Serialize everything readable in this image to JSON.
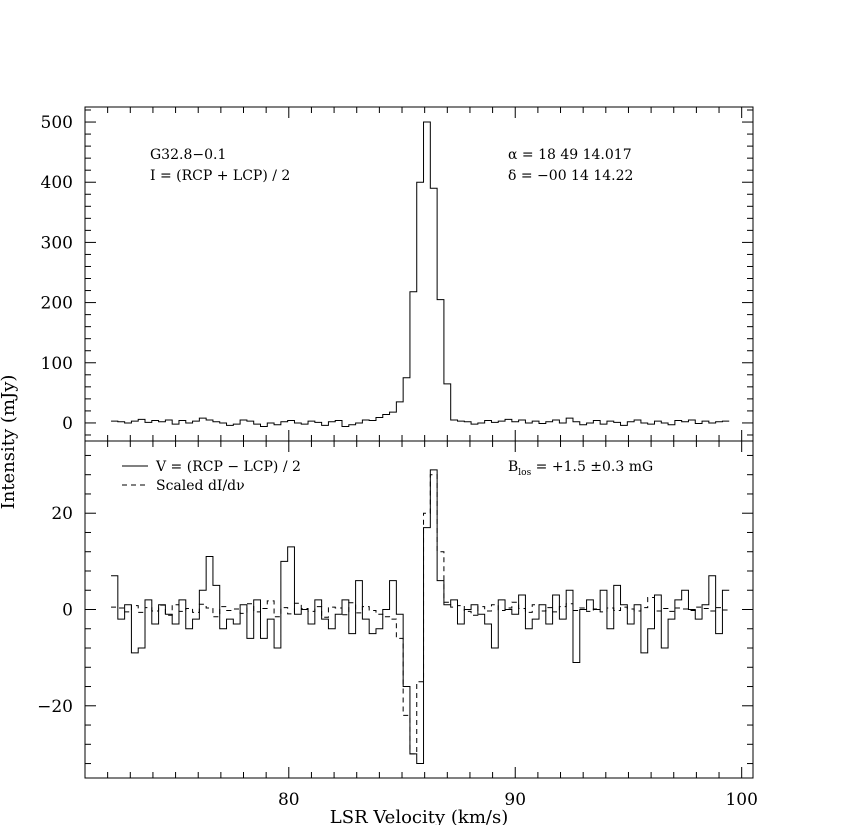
{
  "chart_data": {
    "type": "line",
    "xlabel": "LSR Velocity (km/s)",
    "ylabel": "Intensity (mJy)",
    "xlim": [
      71,
      100.5
    ],
    "xticks": [
      80,
      90,
      100
    ],
    "panels": [
      {
        "id": "top",
        "ylim": [
          -30,
          525
        ],
        "yticks": [
          0,
          100,
          200,
          300,
          400,
          500
        ],
        "annotations": {
          "source": "G32.8−0.1",
          "equation": "I = (RCP + LCP) / 2",
          "ra": "α = 18 49 14.017",
          "dec": "δ = −00 14 14.22"
        },
        "series": [
          {
            "name": "I = (RCP + LCP) / 2",
            "style": "solid",
            "x": [
              72.3,
              72.6,
              72.9,
              73.2,
              73.5,
              73.8,
              74.1,
              74.4,
              74.7,
              75.0,
              75.3,
              75.6,
              75.9,
              76.2,
              76.5,
              76.8,
              77.1,
              77.4,
              77.7,
              78.0,
              78.3,
              78.6,
              78.9,
              79.2,
              79.5,
              79.8,
              80.1,
              80.4,
              80.7,
              81.0,
              81.3,
              81.6,
              81.9,
              82.2,
              82.5,
              82.8,
              83.1,
              83.4,
              83.7,
              84.0,
              84.3,
              84.6,
              84.9,
              85.2,
              85.5,
              85.8,
              86.1,
              86.4,
              86.7,
              87.0,
              87.3,
              87.6,
              87.9,
              88.2,
              88.5,
              88.8,
              89.1,
              89.4,
              89.7,
              90.0,
              90.3,
              90.6,
              90.9,
              91.2,
              91.5,
              91.8,
              92.1,
              92.4,
              92.7,
              93.0,
              93.3,
              93.6,
              93.9,
              94.2,
              94.5,
              94.8,
              95.1,
              95.4,
              95.7,
              96.0,
              96.3,
              96.6,
              96.9,
              97.2,
              97.5,
              97.8,
              98.1,
              98.4,
              98.7,
              99.0,
              99.3
            ],
            "values": [
              3,
              2,
              0,
              3,
              6,
              1,
              4,
              2,
              5,
              -2,
              4,
              0,
              3,
              8,
              5,
              2,
              0,
              -4,
              -2,
              5,
              3,
              -2,
              -6,
              0,
              -3,
              2,
              4,
              0,
              -2,
              3,
              1,
              -4,
              2,
              4,
              -6,
              -3,
              0,
              5,
              4,
              9,
              14,
              18,
              35,
              75,
              218,
              400,
              500,
              390,
              205,
              65,
              5,
              3,
              2,
              -2,
              0,
              4,
              1,
              3,
              6,
              2,
              5,
              0,
              3,
              -1,
              2,
              5,
              0,
              8,
              2,
              -3,
              0,
              4,
              -2,
              3,
              1,
              -4,
              2,
              5,
              0,
              -2,
              3,
              0,
              -3,
              4,
              2,
              5,
              -1,
              3,
              0,
              2,
              3
            ]
          }
        ]
      },
      {
        "id": "bottom",
        "ylim": [
          -35,
          35
        ],
        "yticks": [
          -20,
          0,
          20
        ],
        "annotations": {
          "legend_solid": "V = (RCP − LCP) / 2",
          "legend_dashed": "Scaled dI/dν",
          "field_label": "B",
          "field_sub": "los",
          "field_value": " = +1.5 ±0.3 mG"
        },
        "series": [
          {
            "name": "V = (RCP − LCP) / 2",
            "style": "solid",
            "x": [
              72.3,
              72.6,
              72.9,
              73.2,
              73.5,
              73.8,
              74.1,
              74.4,
              74.7,
              75.0,
              75.3,
              75.6,
              75.9,
              76.2,
              76.5,
              76.8,
              77.1,
              77.4,
              77.7,
              78.0,
              78.3,
              78.6,
              78.9,
              79.2,
              79.5,
              79.8,
              80.1,
              80.4,
              80.7,
              81.0,
              81.3,
              81.6,
              81.9,
              82.2,
              82.5,
              82.8,
              83.1,
              83.4,
              83.7,
              84.0,
              84.3,
              84.6,
              84.9,
              85.2,
              85.5,
              85.8,
              86.1,
              86.4,
              86.7,
              87.0,
              87.3,
              87.6,
              87.9,
              88.2,
              88.5,
              88.8,
              89.1,
              89.4,
              89.7,
              90.0,
              90.3,
              90.6,
              90.9,
              91.2,
              91.5,
              91.8,
              92.1,
              92.4,
              92.7,
              93.0,
              93.3,
              93.6,
              93.9,
              94.2,
              94.5,
              94.8,
              95.1,
              95.4,
              95.7,
              96.0,
              96.3,
              96.6,
              96.9,
              97.2,
              97.5,
              97.8,
              98.1,
              98.4,
              98.7,
              99.0,
              99.3
            ],
            "values": [
              7,
              -2,
              1,
              -9,
              -8,
              2,
              -3,
              1,
              -1,
              -3,
              2,
              -4,
              -2,
              4,
              11,
              5,
              -4,
              -2,
              -3,
              1,
              -6,
              2,
              -6,
              -2,
              -8,
              10,
              13,
              -1,
              0,
              -3,
              2,
              -2,
              -4,
              -1,
              2,
              -5,
              6,
              -2,
              -5,
              -4,
              0,
              6,
              -1,
              -16,
              -30,
              -32,
              17,
              29,
              6,
              1,
              2,
              -3,
              0,
              1,
              -1,
              -3,
              -8,
              2,
              0,
              -1,
              3,
              -4,
              -2,
              1,
              -3,
              3,
              -2,
              4,
              -11,
              0,
              2,
              0,
              4,
              -4,
              5,
              1,
              -3,
              1,
              -9,
              -4,
              3,
              -8,
              -2,
              2,
              4,
              0,
              -2,
              1,
              7,
              -5,
              4
            ]
          },
          {
            "name": "Scaled dI/dν",
            "style": "dashed",
            "x": [
              72.3,
              72.6,
              72.9,
              73.2,
              73.5,
              73.8,
              74.1,
              74.4,
              74.7,
              75.0,
              75.3,
              75.6,
              75.9,
              76.2,
              76.5,
              76.8,
              77.1,
              77.4,
              77.7,
              78.0,
              78.3,
              78.6,
              78.9,
              79.2,
              79.5,
              79.8,
              80.1,
              80.4,
              80.7,
              81.0,
              81.3,
              81.6,
              81.9,
              82.2,
              82.5,
              82.8,
              83.1,
              83.4,
              83.7,
              84.0,
              84.3,
              84.6,
              84.9,
              85.2,
              85.5,
              85.8,
              86.1,
              86.4,
              86.7,
              87.0,
              87.3,
              87.6,
              87.9,
              88.2,
              88.5,
              88.8,
              89.1,
              89.4,
              89.7,
              90.0,
              90.3,
              90.6,
              90.9,
              91.2,
              91.5,
              91.8,
              92.1,
              92.4,
              92.7,
              93.0,
              93.3,
              93.6,
              93.9,
              94.2,
              94.5,
              94.8,
              95.1,
              95.4,
              95.7,
              96.0,
              96.3,
              96.6,
              96.9,
              97.2,
              97.5,
              97.8,
              98.1,
              98.4,
              98.7,
              99.0,
              99.3
            ],
            "values": [
              0.5,
              0.3,
              -0.5,
              0.8,
              -0.6,
              0.4,
              -0.3,
              0.9,
              -1.2,
              1.0,
              -0.4,
              0.2,
              -0.6,
              1.1,
              0.3,
              -1.5,
              0.6,
              -0.2,
              0.1,
              -0.8,
              1.2,
              -0.5,
              0.2,
              1.8,
              -1.5,
              0.4,
              -0.9,
              1.3,
              0.2,
              -0.4,
              0.6,
              -1.6,
              0.5,
              0.3,
              -1.1,
              1.4,
              -0.7,
              0.6,
              -0.2,
              -1.0,
              -1.5,
              -2.0,
              -6.0,
              -22.0,
              -30.0,
              -15.0,
              20.0,
              28.0,
              12.0,
              1.5,
              0.5,
              0.8,
              -0.4,
              -1.2,
              0.6,
              -0.3,
              1.0,
              -0.2,
              0.3,
              1.5,
              0.2,
              -0.6,
              1.0,
              -0.3,
              0.4,
              -0.5,
              0.6,
              1.2,
              -0.2,
              0.3,
              -0.4,
              0.1,
              -0.5,
              0.3,
              -0.2,
              0.5,
              0.1,
              -0.3,
              0.4,
              2.5,
              -0.3,
              0.2,
              -0.4,
              0.3,
              0.1,
              -0.2,
              0.5,
              0.2,
              -0.3,
              0.4,
              -0.1
            ]
          }
        ]
      }
    ]
  }
}
